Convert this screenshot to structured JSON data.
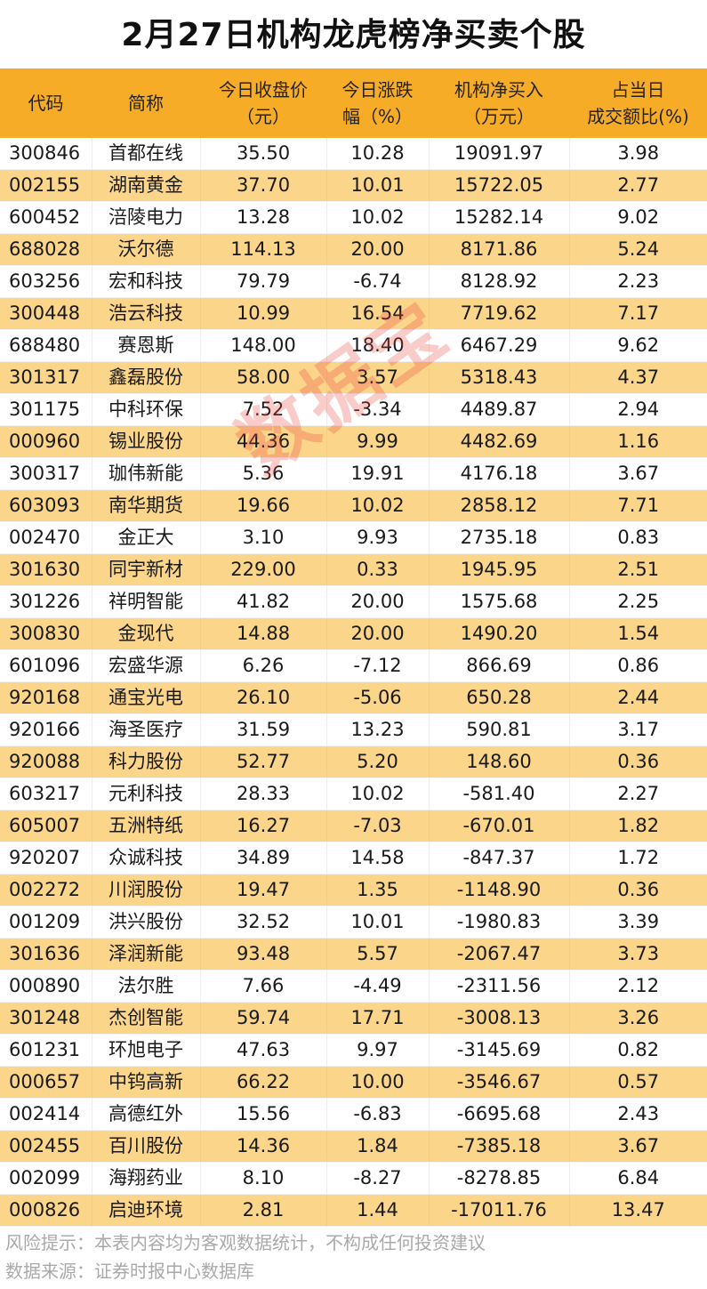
{
  "title": "2月27日机构龙虎榜净买卖个股",
  "headers": [
    [
      "代码",
      ""
    ],
    [
      "简称",
      ""
    ],
    [
      "今日收盘价",
      "（元）"
    ],
    [
      "今日涨跌",
      "幅（%）"
    ],
    [
      "机构净买入",
      "（万元）"
    ],
    [
      "占当日",
      "成交额比(%)"
    ]
  ],
  "rows": [
    [
      "300846",
      "首都在线",
      "35.50",
      "10.28",
      "19091.97",
      "3.98"
    ],
    [
      "002155",
      "湖南黄金",
      "37.70",
      "10.01",
      "15722.05",
      "2.77"
    ],
    [
      "600452",
      "涪陵电力",
      "13.28",
      "10.02",
      "15282.14",
      "9.02"
    ],
    [
      "688028",
      "沃尔德",
      "114.13",
      "20.00",
      "8171.86",
      "5.24"
    ],
    [
      "603256",
      "宏和科技",
      "79.79",
      "-6.74",
      "8128.92",
      "2.23"
    ],
    [
      "300448",
      "浩云科技",
      "10.99",
      "16.54",
      "7719.62",
      "7.17"
    ],
    [
      "688480",
      "赛恩斯",
      "148.00",
      "18.40",
      "6467.29",
      "9.62"
    ],
    [
      "301317",
      "鑫磊股份",
      "58.00",
      "3.57",
      "5318.43",
      "4.37"
    ],
    [
      "301175",
      "中科环保",
      "7.52",
      "-3.34",
      "4489.87",
      "2.94"
    ],
    [
      "000960",
      "锡业股份",
      "44.36",
      "9.99",
      "4482.69",
      "1.16"
    ],
    [
      "300317",
      "珈伟新能",
      "5.36",
      "19.91",
      "4176.18",
      "3.67"
    ],
    [
      "603093",
      "南华期货",
      "19.66",
      "10.02",
      "2858.12",
      "7.71"
    ],
    [
      "002470",
      "金正大",
      "3.10",
      "9.93",
      "2735.18",
      "0.83"
    ],
    [
      "301630",
      "同宇新材",
      "229.00",
      "0.33",
      "1945.95",
      "2.51"
    ],
    [
      "301226",
      "祥明智能",
      "41.82",
      "20.00",
      "1575.68",
      "2.25"
    ],
    [
      "300830",
      "金现代",
      "14.88",
      "20.00",
      "1490.20",
      "1.54"
    ],
    [
      "601096",
      "宏盛华源",
      "6.26",
      "-7.12",
      "866.69",
      "0.86"
    ],
    [
      "920168",
      "通宝光电",
      "26.10",
      "-5.06",
      "650.28",
      "2.44"
    ],
    [
      "920166",
      "海圣医疗",
      "31.59",
      "13.23",
      "590.81",
      "3.17"
    ],
    [
      "920088",
      "科力股份",
      "52.77",
      "5.20",
      "148.60",
      "0.36"
    ],
    [
      "603217",
      "元利科技",
      "28.33",
      "10.02",
      "-581.40",
      "2.27"
    ],
    [
      "605007",
      "五洲特纸",
      "16.27",
      "-7.03",
      "-670.01",
      "1.82"
    ],
    [
      "920207",
      "众诚科技",
      "34.89",
      "14.58",
      "-847.37",
      "1.72"
    ],
    [
      "002272",
      "川润股份",
      "19.47",
      "1.35",
      "-1148.90",
      "0.36"
    ],
    [
      "001209",
      "洪兴股份",
      "32.52",
      "10.01",
      "-1980.83",
      "3.39"
    ],
    [
      "301636",
      "泽润新能",
      "93.48",
      "5.57",
      "-2067.47",
      "3.73"
    ],
    [
      "000890",
      "法尔胜",
      "7.66",
      "-4.49",
      "-2311.56",
      "2.12"
    ],
    [
      "301248",
      "杰创智能",
      "59.74",
      "17.71",
      "-3008.13",
      "3.26"
    ],
    [
      "601231",
      "环旭电子",
      "47.63",
      "9.97",
      "-3145.69",
      "0.82"
    ],
    [
      "000657",
      "中钨高新",
      "66.22",
      "10.00",
      "-3546.67",
      "0.57"
    ],
    [
      "002414",
      "高德红外",
      "15.56",
      "-6.83",
      "-6695.68",
      "2.43"
    ],
    [
      "002455",
      "百川股份",
      "14.36",
      "1.84",
      "-7385.18",
      "3.67"
    ],
    [
      "002099",
      "海翔药业",
      "8.10",
      "-8.27",
      "-8278.85",
      "6.84"
    ],
    [
      "000826",
      "启迪环境",
      "2.81",
      "1.44",
      "-17011.76",
      "13.47"
    ]
  ],
  "footer": {
    "risk": "风险提示：本表内容均为客观数据统计，不构成任何投资建议",
    "source": "数据来源：证券时报中心数据库"
  },
  "watermark": "数据宝",
  "colors": {
    "header": "#F7AC27",
    "alt_row": "#FBD58A"
  }
}
